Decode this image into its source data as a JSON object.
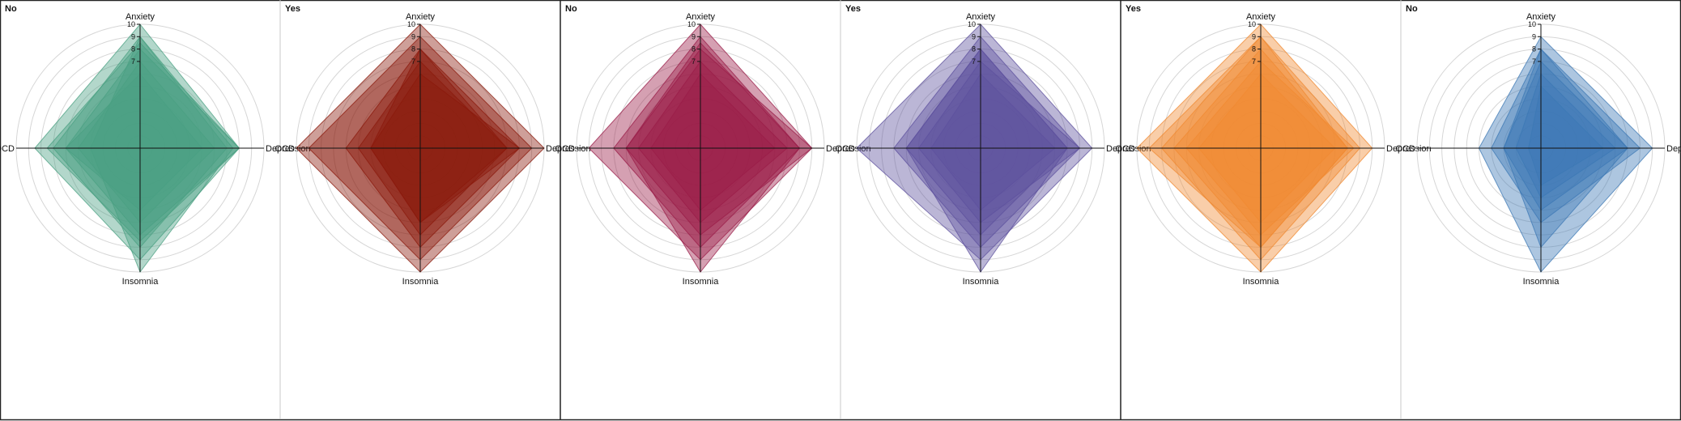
{
  "chart_data": {
    "type": "radar",
    "axes": [
      "Anxiety",
      "Depression",
      "Insomnia",
      "OCD"
    ],
    "ticks": [
      "10",
      "9",
      "8",
      "7"
    ],
    "rlim": [
      0,
      10
    ],
    "panels": [
      {
        "title": "No",
        "color": "#4aa082",
        "series": [
          {
            "values": [
              10,
              8,
              9,
              8.5
            ]
          },
          {
            "values": [
              9,
              7,
              8,
              7
            ]
          },
          {
            "values": [
              8,
              8,
              7,
              6
            ]
          },
          {
            "values": [
              7,
              6,
              6,
              5
            ]
          },
          {
            "values": [
              6,
              5,
              5,
              6
            ]
          },
          {
            "values": [
              9,
              7.5,
              10,
              4
            ]
          },
          {
            "values": [
              8.5,
              8,
              7.5,
              7.5
            ]
          }
        ]
      },
      {
        "title": "Yes",
        "color": "#8b1a0c",
        "series": [
          {
            "values": [
              10,
              10,
              10,
              10
            ]
          },
          {
            "values": [
              9,
              9,
              9,
              9
            ]
          },
          {
            "values": [
              8,
              8,
              8,
              6
            ]
          },
          {
            "values": [
              7,
              7,
              7,
              5
            ]
          },
          {
            "values": [
              6,
              8,
              6,
              4
            ]
          },
          {
            "values": [
              8,
              7,
              6,
              4
            ]
          }
        ]
      },
      {
        "title": "No",
        "color": "#9a1c48",
        "series": [
          {
            "values": [
              10,
              9,
              9,
              9
            ]
          },
          {
            "values": [
              9,
              8,
              8,
              7
            ]
          },
          {
            "values": [
              8,
              9,
              7,
              6
            ]
          },
          {
            "values": [
              7,
              7,
              6,
              5
            ]
          },
          {
            "values": [
              6,
              6,
              5,
              4
            ]
          },
          {
            "values": [
              8.5,
              8,
              10,
              6
            ]
          }
        ]
      },
      {
        "title": "Yes",
        "color": "#5e509e",
        "series": [
          {
            "values": [
              10,
              9,
              9,
              10
            ]
          },
          {
            "values": [
              9,
              8,
              8,
              7
            ]
          },
          {
            "values": [
              8,
              7,
              7,
              6
            ]
          },
          {
            "values": [
              7,
              8,
              6,
              5
            ]
          },
          {
            "values": [
              6,
              6,
              5,
              4
            ]
          },
          {
            "values": [
              8,
              7,
              10,
              6
            ]
          }
        ]
      },
      {
        "title": "Yes",
        "color": "#f08a32",
        "series": [
          {
            "values": [
              10,
              9,
              10,
              10
            ]
          },
          {
            "values": [
              9,
              8,
              9,
              8
            ]
          },
          {
            "values": [
              8,
              7,
              8,
              7
            ]
          },
          {
            "values": [
              7,
              7.5,
              7,
              6
            ]
          },
          {
            "values": [
              6,
              6,
              6,
              5
            ]
          },
          {
            "values": [
              9,
              7,
              8,
              9
            ]
          }
        ]
      },
      {
        "title": "No",
        "color": "#3c78b4",
        "series": [
          {
            "values": [
              9,
              9,
              10,
              5
            ]
          },
          {
            "values": [
              8,
              8,
              6,
              4
            ]
          },
          {
            "values": [
              7,
              7,
              5,
              3
            ]
          },
          {
            "values": [
              6,
              6,
              4,
              2
            ]
          },
          {
            "values": [
              5,
              5,
              3,
              1
            ]
          },
          {
            "values": [
              8,
              7,
              8,
              3
            ]
          }
        ]
      }
    ],
    "grid": true,
    "legend": "none"
  }
}
